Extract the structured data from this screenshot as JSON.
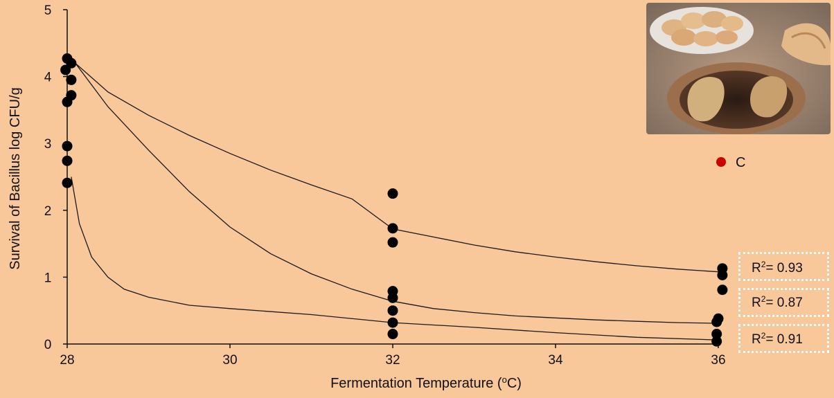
{
  "chart_data": {
    "type": "scatter",
    "title": "",
    "xlabel": "Fermentation Temperature (°C)",
    "xlabel_parts": {
      "main": "Fermentation Temperature (",
      "sup": "o",
      "end": "C)"
    },
    "ylabel": "Survival of Bacillus  log CFU/g",
    "xlim": [
      28,
      36
    ],
    "ylim": [
      0,
      5
    ],
    "x_ticks": [
      "28",
      "30",
      "32",
      "34",
      "36"
    ],
    "y_ticks": [
      "0",
      "1",
      "2",
      "3",
      "4",
      "5"
    ],
    "legend": {
      "label": "C",
      "color": "#cc0000",
      "position": "right"
    },
    "points": [
      {
        "x": 28.0,
        "y": 4.27
      },
      {
        "x": 28.05,
        "y": 4.2
      },
      {
        "x": 27.98,
        "y": 4.1
      },
      {
        "x": 28.05,
        "y": 3.95
      },
      {
        "x": 28.05,
        "y": 3.72
      },
      {
        "x": 28.0,
        "y": 3.62
      },
      {
        "x": 28.0,
        "y": 2.96
      },
      {
        "x": 28.0,
        "y": 2.74
      },
      {
        "x": 28.0,
        "y": 2.41
      },
      {
        "x": 32.0,
        "y": 2.25
      },
      {
        "x": 32.0,
        "y": 1.73
      },
      {
        "x": 32.0,
        "y": 1.52
      },
      {
        "x": 32.0,
        "y": 0.79
      },
      {
        "x": 32.0,
        "y": 0.69
      },
      {
        "x": 32.0,
        "y": 0.5
      },
      {
        "x": 32.0,
        "y": 0.32
      },
      {
        "x": 32.0,
        "y": 0.15
      },
      {
        "x": 36.05,
        "y": 1.13
      },
      {
        "x": 36.05,
        "y": 1.03
      },
      {
        "x": 36.05,
        "y": 0.81
      },
      {
        "x": 36.0,
        "y": 0.38
      },
      {
        "x": 35.98,
        "y": 0.33
      },
      {
        "x": 35.98,
        "y": 0.15
      },
      {
        "x": 35.98,
        "y": 0.04
      }
    ],
    "series": [
      {
        "r2_label": "R²= 0.93",
        "r2_parts": {
          "pre": "R",
          "sup": "2",
          "post": "= 0.93"
        },
        "curve": [
          [
            28.1,
            4.2
          ],
          [
            28.5,
            3.77
          ],
          [
            29,
            3.42
          ],
          [
            29.5,
            3.12
          ],
          [
            30,
            2.85
          ],
          [
            30.5,
            2.6
          ],
          [
            31,
            2.38
          ],
          [
            31.5,
            2.17
          ],
          [
            32,
            1.72
          ],
          [
            32.5,
            1.6
          ],
          [
            33,
            1.48
          ],
          [
            33.5,
            1.38
          ],
          [
            34,
            1.3
          ],
          [
            34.5,
            1.23
          ],
          [
            35,
            1.17
          ],
          [
            35.5,
            1.12
          ],
          [
            36,
            1.08
          ]
        ]
      },
      {
        "r2_label": "R²= 0.87",
        "r2_parts": {
          "pre": "R",
          "sup": "2",
          "post": "= 0.87"
        },
        "curve": [
          [
            28.1,
            4.2
          ],
          [
            28.5,
            3.55
          ],
          [
            29,
            2.9
          ],
          [
            29.5,
            2.28
          ],
          [
            30,
            1.75
          ],
          [
            30.5,
            1.35
          ],
          [
            31,
            1.05
          ],
          [
            31.5,
            0.82
          ],
          [
            32,
            0.64
          ],
          [
            32.5,
            0.53
          ],
          [
            33,
            0.47
          ],
          [
            33.5,
            0.42
          ],
          [
            34,
            0.39
          ],
          [
            34.5,
            0.36
          ],
          [
            35,
            0.34
          ],
          [
            35.5,
            0.32
          ],
          [
            36,
            0.31
          ]
        ]
      },
      {
        "r2_label": "R²= 0.91",
        "r2_parts": {
          "pre": "R",
          "sup": "2",
          "post": "= 0.91"
        },
        "curve": [
          [
            28.05,
            2.5
          ],
          [
            28.15,
            1.8
          ],
          [
            28.3,
            1.3
          ],
          [
            28.5,
            1.0
          ],
          [
            28.7,
            0.82
          ],
          [
            29,
            0.7
          ],
          [
            29.5,
            0.58
          ],
          [
            30,
            0.53
          ],
          [
            31,
            0.44
          ],
          [
            32,
            0.32
          ],
          [
            33,
            0.25
          ],
          [
            34,
            0.17
          ],
          [
            35,
            0.1
          ],
          [
            36,
            0.06
          ]
        ]
      }
    ]
  },
  "image": {
    "name": "tandoor bread oven photo",
    "icon": "photo-icon"
  }
}
